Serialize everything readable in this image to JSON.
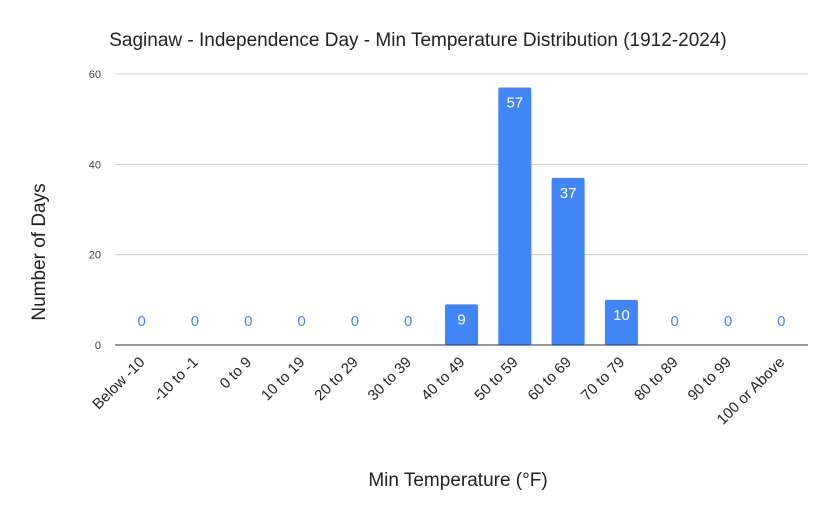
{
  "chart_data": {
    "type": "bar",
    "title": "Saginaw - Independence Day - Min Temperature Distribution (1912-2024)",
    "xlabel": "Min Temperature (°F)",
    "ylabel": "Number of Days",
    "categories": [
      "Below -10",
      "-10 to -1",
      "0 to 9",
      "10 to 19",
      "20 to 29",
      "30 to 39",
      "40 to 49",
      "50 to 59",
      "60 to 69",
      "70 to 79",
      "80 to 89",
      "90 to 99",
      "100 or Above"
    ],
    "values": [
      0,
      0,
      0,
      0,
      0,
      0,
      9,
      57,
      37,
      10,
      0,
      0,
      0
    ],
    "data_labels": [
      "0",
      "0",
      "0",
      "0",
      "0",
      "0",
      "9",
      "57",
      "37",
      "10",
      "0",
      "0",
      "0"
    ],
    "ylim": [
      0,
      60
    ],
    "yticks": [
      0,
      20,
      40,
      60
    ],
    "ytick_labels": [
      "0",
      "20",
      "40",
      "60"
    ],
    "grid": true,
    "legend": "none",
    "colors": {
      "bar": "#4285f4",
      "label_inside": "#ffffff",
      "label_outside": "#4285f4",
      "gridline": "#cccccc",
      "baseline": "#333333"
    }
  }
}
